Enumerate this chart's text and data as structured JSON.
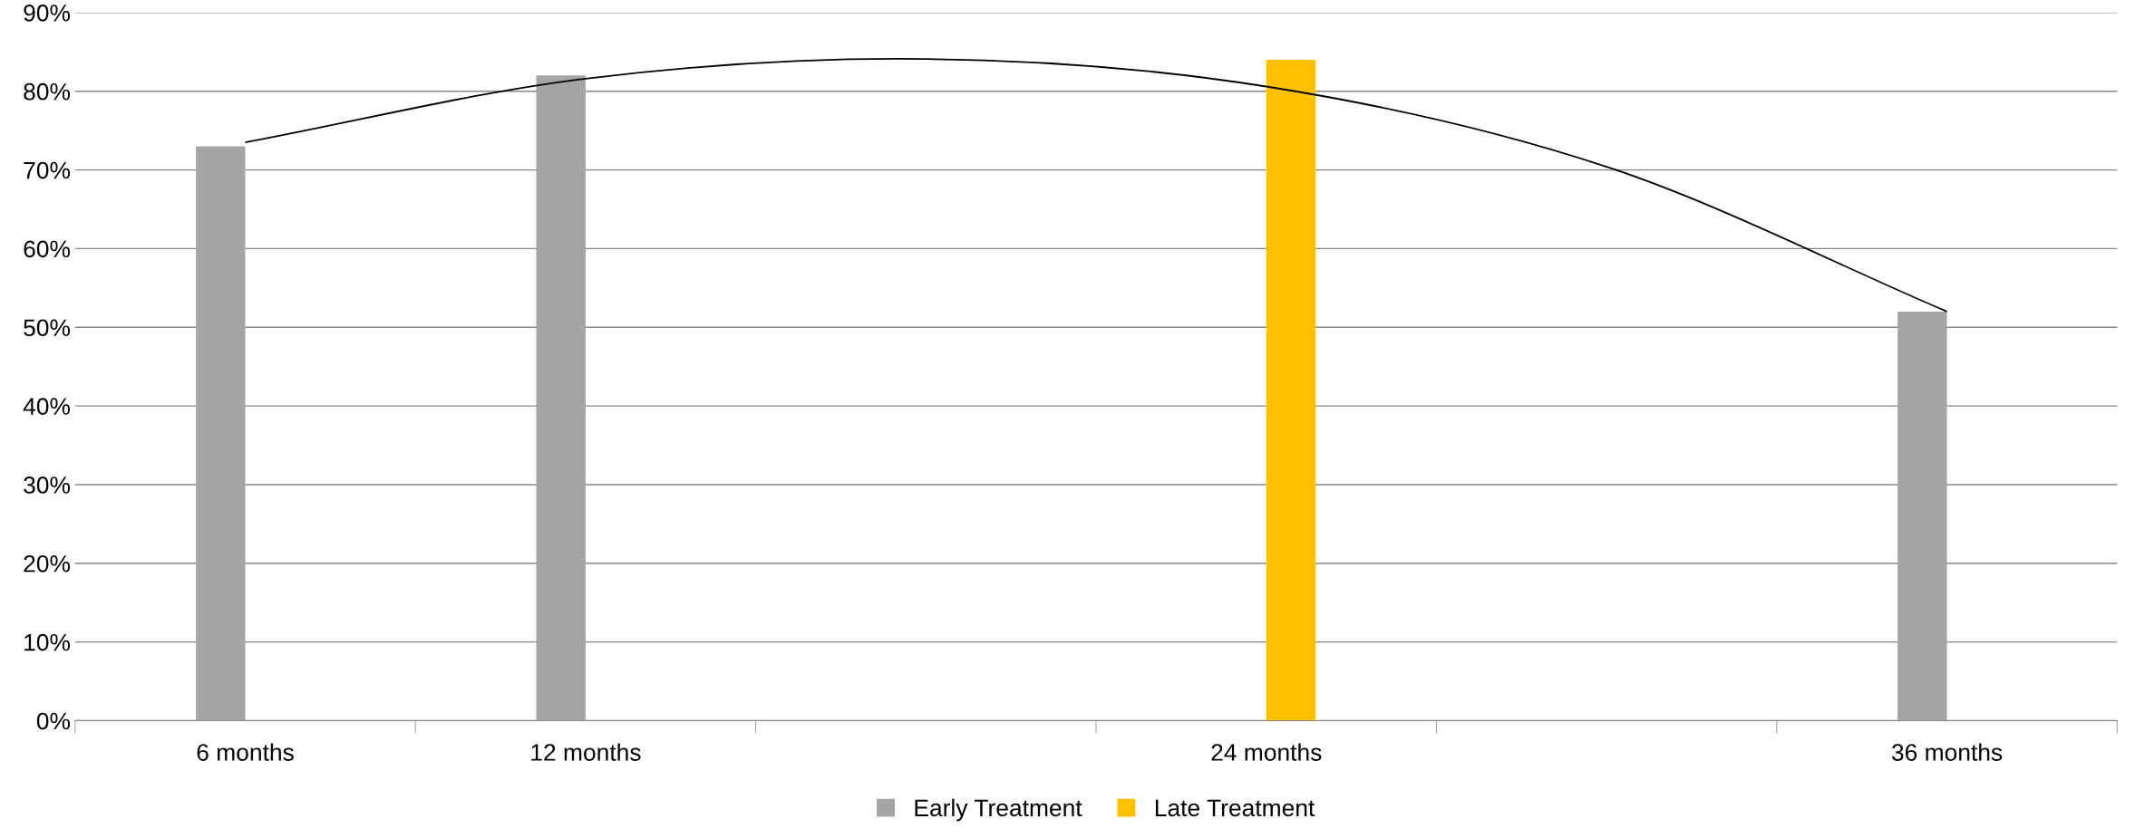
{
  "chart_data": {
    "type": "bar",
    "categories": [
      "6 months",
      "12 months",
      null,
      "24 months",
      null,
      "36 months"
    ],
    "series": [
      {
        "name": "Early Treatment",
        "color": "#a5a5a5",
        "values": [
          73,
          82,
          null,
          null,
          null,
          52
        ]
      },
      {
        "name": "Late Treatment",
        "color": "#ffc000",
        "values": [
          null,
          null,
          null,
          84,
          null,
          null
        ]
      },
      {
        "type": "line",
        "color": "#000000",
        "values": [
          73.5,
          81.6,
          84.1,
          80.6,
          70.4,
          52
        ]
      }
    ],
    "ylim": [
      0,
      90
    ],
    "yticks": [
      {
        "value": 0,
        "label": "0%"
      },
      {
        "value": 10,
        "label": "10%"
      },
      {
        "value": 20,
        "label": "20%"
      },
      {
        "value": 30,
        "label": "30%"
      },
      {
        "value": 40,
        "label": "40%"
      },
      {
        "value": 50,
        "label": "50%"
      },
      {
        "value": 60,
        "label": "60%"
      },
      {
        "value": 70,
        "label": "70%"
      },
      {
        "value": 80,
        "label": "80%"
      },
      {
        "value": 90,
        "label": "90%"
      }
    ],
    "grid": "y",
    "legend": "bottom"
  }
}
